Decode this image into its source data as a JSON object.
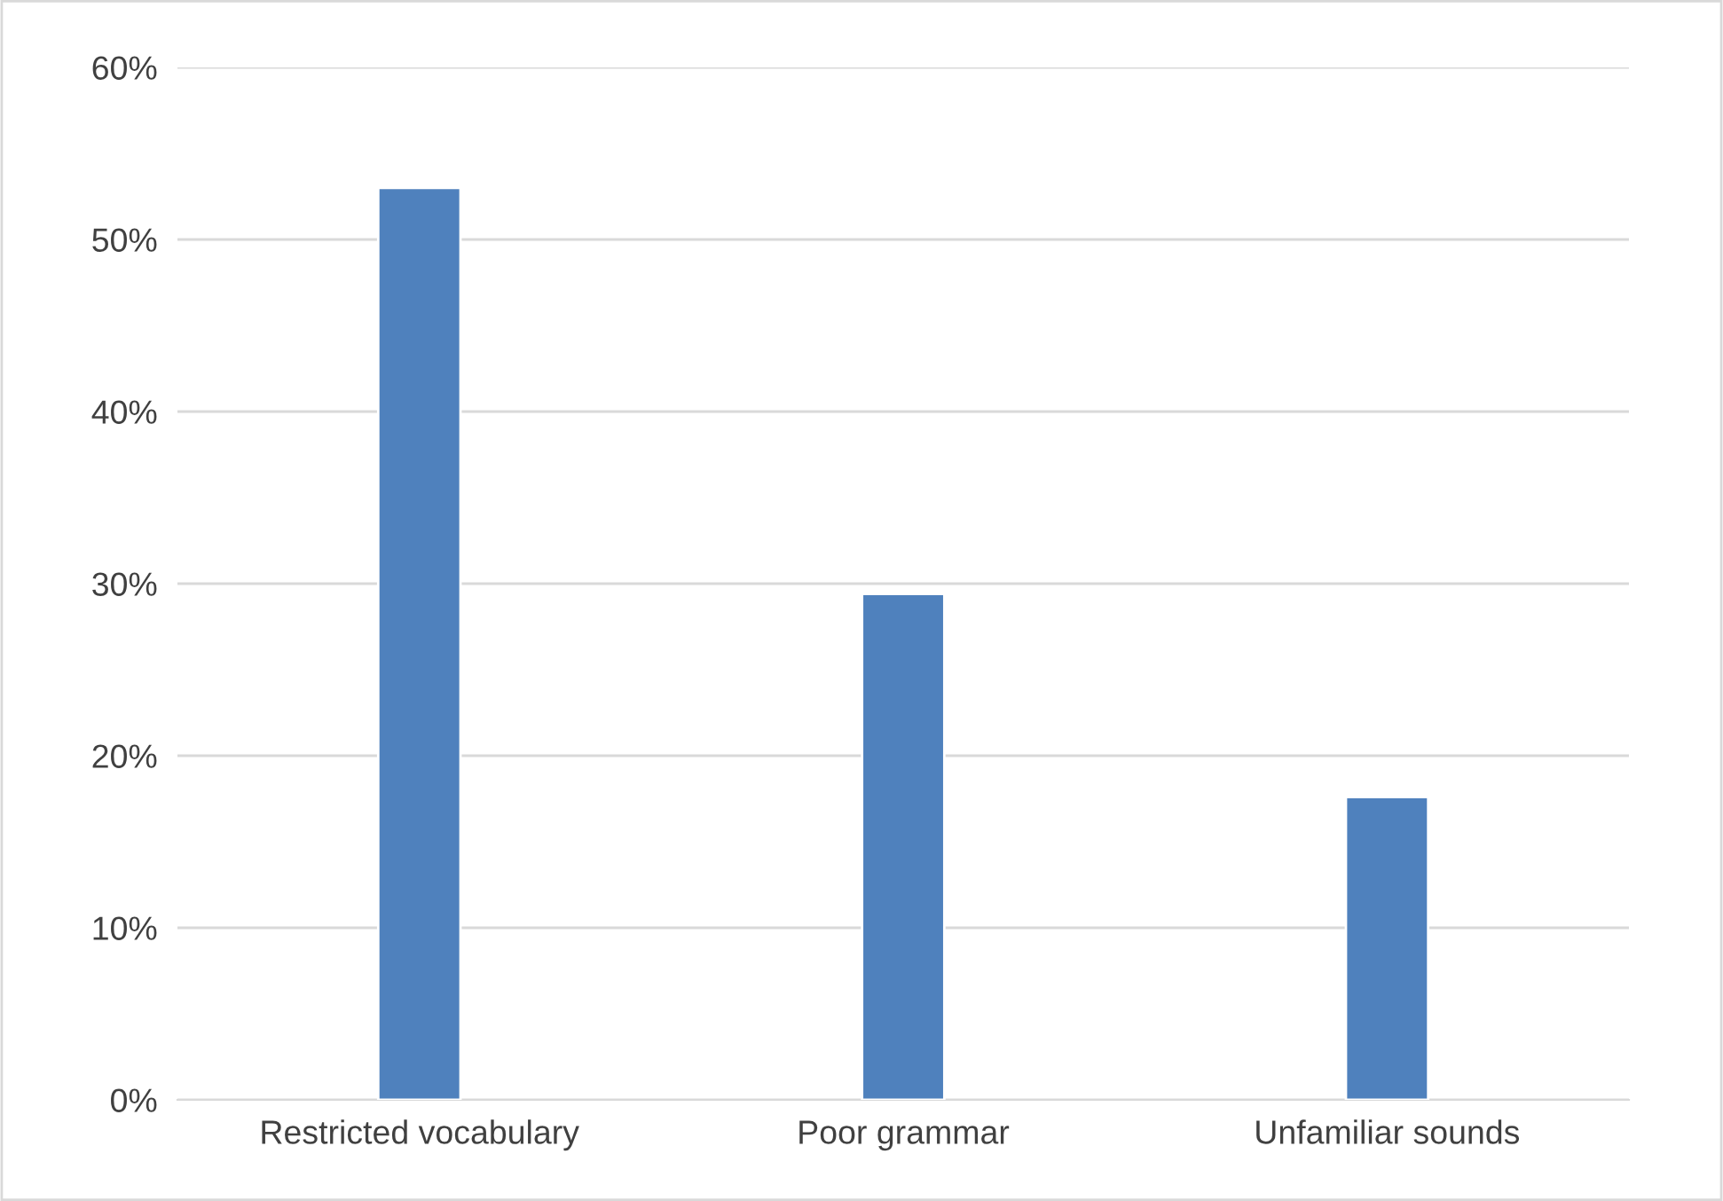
{
  "chart_data": {
    "type": "bar",
    "categories": [
      "Restricted vocabulary",
      "Poor grammar",
      "Unfamiliar sounds"
    ],
    "values": [
      53,
      29.4,
      17.6
    ],
    "color": "#4f81bd",
    "ylim": [
      0,
      60
    ],
    "yticks": [
      {
        "value": 0,
        "label": "0%"
      },
      {
        "value": 10,
        "label": "10%"
      },
      {
        "value": 20,
        "label": "20%"
      },
      {
        "value": 30,
        "label": "30%"
      },
      {
        "value": 40,
        "label": "40%"
      },
      {
        "value": 50,
        "label": "50%"
      },
      {
        "value": 60,
        "label": "60%"
      }
    ],
    "grid": "y"
  }
}
